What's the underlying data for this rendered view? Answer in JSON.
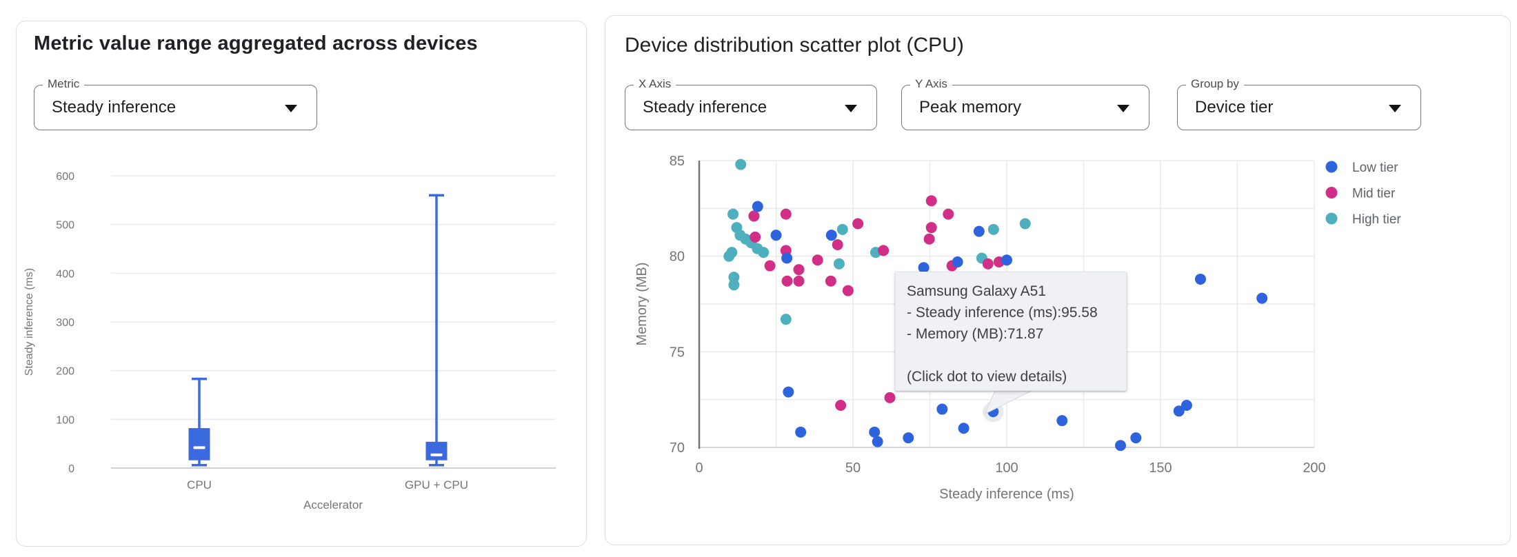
{
  "left_panel": {
    "title": "Metric value range aggregated across devices",
    "metric_dropdown": {
      "label": "Metric",
      "value": "Steady inference"
    }
  },
  "right_panel": {
    "title": "Device distribution scatter plot (CPU)",
    "x_axis_dropdown": {
      "label": "X Axis",
      "value": "Steady inference"
    },
    "y_axis_dropdown": {
      "label": "Y Axis",
      "value": "Peak memory"
    },
    "group_by_dropdown": {
      "label": "Group by",
      "value": "Device tier"
    },
    "tooltip": {
      "device": "Samsung Galaxy A51",
      "metric_line_1": "- Steady inference (ms):95.58",
      "metric_line_2": "- Memory (MB):71.87",
      "hint": "(Click dot to view details)"
    }
  },
  "chart_data": [
    {
      "type": "box",
      "title": "Metric value range aggregated across devices",
      "xlabel": "Accelerator",
      "ylabel": "Steady inference (ms)",
      "ylim": [
        0,
        600
      ],
      "yticks": [
        0,
        100,
        200,
        300,
        400,
        500,
        600
      ],
      "categories": [
        "CPU",
        "GPU + CPU"
      ],
      "color": "#3b6adf",
      "grid": true,
      "series": [
        {
          "category": "CPU",
          "whisker_low": 6,
          "q1": 16,
          "median": 42,
          "q3": 82,
          "whisker_high": 183
        },
        {
          "category": "GPU + CPU",
          "whisker_low": 6,
          "q1": 16,
          "median": 27,
          "q3": 54,
          "whisker_high": 560
        }
      ]
    },
    {
      "type": "scatter",
      "title": "Device distribution scatter plot (CPU)",
      "xlabel": "Steady inference (ms)",
      "ylabel": "Memory (MB)",
      "xlim": [
        0,
        200
      ],
      "ylim": [
        70,
        85
      ],
      "xticks": [
        0,
        50,
        100,
        150,
        200
      ],
      "yticks": [
        70,
        75,
        80,
        85
      ],
      "grid_x_interval": 25,
      "grid_y_interval": 2.5,
      "grid": true,
      "legend": {
        "position": "right",
        "entries": [
          {
            "label": "Low tier",
            "color": "#2d63dd"
          },
          {
            "label": "Mid tier",
            "color": "#d12e87"
          },
          {
            "label": "High tier",
            "color": "#4eafbe"
          }
        ]
      },
      "series": [
        {
          "name": "Low tier",
          "color": "#2d63dd",
          "points": [
            [
              19,
              82.6
            ],
            [
              25,
              81.1
            ],
            [
              28.5,
              79.9
            ],
            [
              43,
              81.1
            ],
            [
              73,
              79.4
            ],
            [
              84,
              79.7
            ],
            [
              91,
              81.3
            ],
            [
              100,
              79.8
            ],
            [
              29,
              72.9
            ],
            [
              33,
              70.8
            ],
            [
              57,
              70.8
            ],
            [
              58,
              70.3
            ],
            [
              68,
              70.5
            ],
            [
              79,
              72.0
            ],
            [
              86,
              71.0
            ],
            [
              95.58,
              71.87
            ],
            [
              118,
              71.4
            ],
            [
              137,
              70.1
            ],
            [
              142,
              70.5
            ],
            [
              156,
              71.9
            ],
            [
              158.5,
              72.2
            ],
            [
              163,
              78.8
            ],
            [
              183,
              77.8
            ]
          ]
        },
        {
          "name": "Mid tier",
          "color": "#d12e87",
          "points": [
            [
              17.8,
              82.1
            ],
            [
              28.2,
              82.2
            ],
            [
              18.2,
              81.0
            ],
            [
              23,
              79.5
            ],
            [
              28.2,
              80.3
            ],
            [
              32.4,
              79.3
            ],
            [
              28.6,
              78.7
            ],
            [
              32.4,
              78.7
            ],
            [
              38.5,
              79.8
            ],
            [
              45,
              80.6
            ],
            [
              51.6,
              81.7
            ],
            [
              42.8,
              78.7
            ],
            [
              48.4,
              78.2
            ],
            [
              59.9,
              80.3
            ],
            [
              75.5,
              82.9
            ],
            [
              81,
              82.2
            ],
            [
              75.5,
              81.5
            ],
            [
              74.8,
              80.9
            ],
            [
              93.9,
              79.6
            ],
            [
              97.5,
              79.7
            ],
            [
              82.2,
              79.5
            ],
            [
              46,
              72.2
            ],
            [
              62,
              72.6
            ]
          ]
        },
        {
          "name": "High tier",
          "color": "#4eafbe",
          "points": [
            [
              13.5,
              84.8
            ],
            [
              11,
              82.2
            ],
            [
              12.2,
              81.5
            ],
            [
              13.3,
              81.1
            ],
            [
              15.1,
              80.9
            ],
            [
              16.9,
              80.7
            ],
            [
              18.9,
              80.4
            ],
            [
              20.9,
              80.2
            ],
            [
              10.6,
              80.2
            ],
            [
              9.7,
              80.0
            ],
            [
              11.3,
              78.9
            ],
            [
              11.3,
              78.5
            ],
            [
              46.6,
              81.4
            ],
            [
              45.5,
              79.6
            ],
            [
              57.4,
              80.2
            ],
            [
              28.2,
              76.7
            ],
            [
              95.7,
              81.4
            ],
            [
              91.9,
              79.9
            ],
            [
              106,
              81.7
            ]
          ]
        }
      ],
      "highlighted_point": {
        "series": "Low tier",
        "x": 95.58,
        "y": 71.87,
        "device": "Samsung Galaxy A51"
      }
    }
  ]
}
